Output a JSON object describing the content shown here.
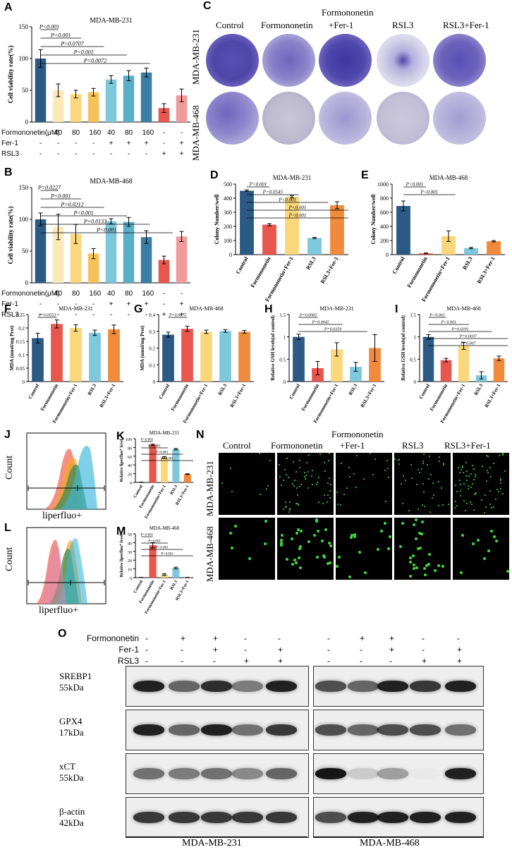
{
  "panel_labels": {
    "A": "A",
    "B": "B",
    "C": "C",
    "D": "D",
    "E": "E",
    "F": "F",
    "G": "G",
    "H": "H",
    "I": "I",
    "J": "J",
    "K": "K",
    "L": "L",
    "M": "M",
    "N": "N",
    "O": "O"
  },
  "treatments": [
    "Control",
    "Formononetin",
    "Formononetin +Fer-1",
    "RSL3",
    "RSL3+Fer-1"
  ],
  "panelC": {
    "col1": "Control",
    "col2": "Formononetin",
    "col3a": "Formononetin",
    "col3b": "+Fer-1",
    "col4": "RSL3",
    "col5": "RSL3+Fer-1",
    "row1": "MDA-MB-231",
    "row2": "MDA-MB-468"
  },
  "panelN": {
    "col1": "Control",
    "col2": "Formononetin",
    "col3a": "Formononetin",
    "col3b": "+Fer-1",
    "col4": "RSL3",
    "col5": "RSL3+Fer-1",
    "row1": "MDA-MB-231",
    "row2": "MDA-MB-468"
  },
  "treatment_table": {
    "row_labels": [
      "Formononetin(μM)",
      "Fer-1",
      "RSL3"
    ],
    "A": [
      [
        "-",
        "40",
        "80",
        "160",
        "40",
        "80",
        "160",
        "-",
        "-"
      ],
      [
        "-",
        "-",
        "-",
        "-",
        "+",
        "+",
        "+",
        "-",
        "+"
      ],
      [
        "-",
        "-",
        "-",
        "-",
        "-",
        "-",
        "-",
        "+",
        "+"
      ]
    ],
    "B": [
      [
        "-",
        "40",
        "80",
        "160",
        "40",
        "80",
        "160",
        "-",
        "-"
      ],
      [
        "-",
        "-",
        "-",
        "-",
        "+",
        "+",
        "+",
        "-",
        "+"
      ],
      [
        "-",
        "-",
        "-",
        "-",
        "-",
        "-",
        "-",
        "+",
        "+"
      ]
    ]
  },
  "flow": {
    "J_ylabel": "Count",
    "J_xlabel": "liperfluo+",
    "L_ylabel": "Count",
    "L_xlabel": "liperfluo+"
  },
  "western": {
    "row_labels": [
      "Formononetin",
      "Fer-1",
      "RSL3"
    ],
    "signs": [
      [
        "-",
        "+",
        "+",
        "-",
        "-"
      ],
      [
        "-",
        "-",
        "+",
        "-",
        "+"
      ],
      [
        "-",
        "-",
        "-",
        "+",
        "+"
      ]
    ],
    "proteins": [
      {
        "name": "SREBP1",
        "kda": "55kDa"
      },
      {
        "name": "GPX4",
        "kda": "17kDa"
      },
      {
        "name": "xCT",
        "kda": "55kDa"
      },
      {
        "name": "β-actin",
        "kda": "42kDa"
      }
    ],
    "left_cell": "MDA-MB-231",
    "right_cell": "MDA-MB-468"
  },
  "chart_data": [
    {
      "id": "A",
      "type": "bar",
      "title": "MDA-MB-231",
      "ylabel": "Cell viability rate(%)",
      "ylim": [
        0,
        150
      ],
      "yticks": [
        0,
        50,
        100,
        150
      ],
      "values": [
        100,
        50,
        44,
        47,
        67,
        73,
        78,
        22,
        42
      ],
      "errors": [
        14,
        10,
        6,
        6,
        6,
        8,
        7,
        7,
        10
      ],
      "colors": [
        "#2b5b84",
        "#fde9b8",
        "#fbd77c",
        "#f5c25a",
        "#7ec8dc",
        "#5aafc8",
        "#3b7ea5",
        "#e8574e",
        "#f09a9a"
      ],
      "annotations": [
        "P<0.001",
        "P<0.001",
        "P=0.0707",
        "P<0.001",
        "P=0.0072"
      ]
    },
    {
      "id": "B",
      "type": "bar",
      "title": "MDA-MB-468",
      "ylabel": "Cell viability rate(%)",
      "ylim": [
        0,
        150
      ],
      "yticks": [
        0,
        50,
        100,
        150
      ],
      "values": [
        100,
        88,
        77,
        46,
        97,
        96,
        72,
        36,
        73
      ],
      "errors": [
        10,
        20,
        15,
        8,
        4,
        7,
        10,
        6,
        8
      ],
      "colors": [
        "#2b5b84",
        "#fde9b8",
        "#fbd77c",
        "#f5c25a",
        "#7ec8dc",
        "#5aafc8",
        "#3b7ea5",
        "#e8574e",
        "#f09a9a"
      ],
      "annotations": [
        "P=0.0227",
        "P<0.001",
        "P=0.0212",
        "P<0.001",
        "P=0.0133",
        "P<0.001"
      ]
    },
    {
      "id": "D",
      "type": "bar",
      "title": "MDA-MB-231",
      "ylabel": "Colony  Number/well",
      "categories": [
        "Control",
        "Formononetin",
        "Formononetin+Fer-1",
        "RSL3",
        "RSL3+Fer-1"
      ],
      "ylim": [
        0,
        500
      ],
      "yticks": [
        0,
        100,
        200,
        300,
        400,
        500
      ],
      "values": [
        453,
        212,
        410,
        118,
        350
      ],
      "errors": [
        6,
        8,
        8,
        4,
        25
      ],
      "colors": [
        "#2b5b84",
        "#e8574e",
        "#fbd77c",
        "#7ec8dc",
        "#f08a3c"
      ],
      "annotations": [
        "P<0.001",
        "P=0.0545",
        "P<0.001",
        "P<0.001",
        "P<0.001"
      ]
    },
    {
      "id": "E",
      "type": "bar",
      "title": "MDA-MB-468",
      "ylabel": "Colony  Number/well",
      "categories": [
        "Control",
        "Formononetin",
        "Formononetin+Fer-1",
        "RSL3",
        "RSL3+Fer-1"
      ],
      "ylim": [
        0,
        1000
      ],
      "yticks": [
        0,
        200,
        400,
        600,
        800,
        1000
      ],
      "values": [
        690,
        18,
        262,
        92,
        190
      ],
      "errors": [
        70,
        5,
        75,
        10,
        10
      ],
      "colors": [
        "#2b5b84",
        "#e8574e",
        "#fbd77c",
        "#7ec8dc",
        "#f08a3c"
      ],
      "annotations": [
        "P<0.001",
        "P<0.001"
      ]
    },
    {
      "id": "F",
      "type": "bar",
      "title": "MDA-MB-231",
      "ylabel": "MDA (nmol/mg Prot)",
      "categories": [
        "Control",
        "Formononetin",
        "Formononetin+Fer-1",
        "RSL3",
        "RSL3+Fer-1"
      ],
      "ylim": [
        0,
        0.25
      ],
      "yticks": [
        0,
        0.05,
        0.1,
        0.15,
        0.2,
        0.25
      ],
      "values": [
        0.162,
        0.215,
        0.2,
        0.182,
        0.195
      ],
      "errors": [
        0.018,
        0.015,
        0.012,
        0.01,
        0.016
      ],
      "colors": [
        "#2b5b84",
        "#e8574e",
        "#fbd77c",
        "#7ec8dc",
        "#f08a3c"
      ],
      "annotations": [
        "P=0.0553"
      ]
    },
    {
      "id": "G",
      "type": "bar",
      "title": "MDA-MB-468",
      "ylabel": "MDA (nmol/mg Prot)",
      "categories": [
        "Control",
        "Formononetin",
        "Formononetin+Fer-1",
        "RSL3",
        "RSL3+Fer-1"
      ],
      "ylim": [
        0,
        0.4
      ],
      "yticks": [
        0,
        0.1,
        0.2,
        0.3,
        0.4
      ],
      "values": [
        0.28,
        0.315,
        0.297,
        0.302,
        0.297
      ],
      "errors": [
        0.015,
        0.015,
        0.01,
        0.008,
        0.008
      ],
      "colors": [
        "#2b5b84",
        "#e8574e",
        "#fbd77c",
        "#7ec8dc",
        "#f08a3c"
      ],
      "annotations": [
        "P=0.0175"
      ]
    },
    {
      "id": "H",
      "type": "bar",
      "title": "MDA-MB-231",
      "ylabel": "Relative GSH levels(of control)",
      "categories": [
        "Control",
        "Formononetin",
        "Formononetin+Fer-1",
        "RSL3",
        "RSL3+Fer-1"
      ],
      "ylim": [
        0,
        1.5
      ],
      "yticks": [
        0,
        0.5,
        1.0,
        1.5
      ],
      "values": [
        1.0,
        0.3,
        0.72,
        0.33,
        0.75
      ],
      "errors": [
        0.06,
        0.15,
        0.15,
        0.1,
        0.3
      ],
      "colors": [
        "#2b5b84",
        "#e8574e",
        "#fbd77c",
        "#7ec8dc",
        "#f08a3c"
      ],
      "annotations": [
        "P=0.0065",
        "P=0.0045",
        "P=0.0359"
      ]
    },
    {
      "id": "I",
      "type": "bar",
      "title": "MDA-MB-468",
      "ylabel": "Relative GSH levels(of control)",
      "categories": [
        "Control",
        "Formononetin",
        "Formononetin+Fer-1",
        "RSL3",
        "RSL3+Fer-1"
      ],
      "ylim": [
        0,
        1.5
      ],
      "yticks": [
        0,
        0.5,
        1.0,
        1.5
      ],
      "values": [
        1.0,
        0.48,
        0.8,
        0.14,
        0.52
      ],
      "errors": [
        0.05,
        0.04,
        0.08,
        0.08,
        0.05
      ],
      "colors": [
        "#2b5b84",
        "#e8574e",
        "#fbd77c",
        "#7ec8dc",
        "#f08a3c"
      ],
      "annotations": [
        "P<0.001",
        "P<0.001",
        "P=0.0391",
        "P=0.0037",
        "P=0.007"
      ]
    },
    {
      "id": "K",
      "type": "bar",
      "title": "MDA-MB-231",
      "ylabel": "Relative liperfluo⁺ level",
      "categories": [
        "Control",
        "Formononetin",
        "Formononetin+Fer-1",
        "RSL3",
        "RSL3+Fer-1"
      ],
      "ylim": [
        0,
        100
      ],
      "yticks": [
        0,
        20,
        40,
        60,
        80,
        100
      ],
      "values": [
        0.5,
        86,
        57,
        76,
        19
      ],
      "errors": [
        0.3,
        1.5,
        2,
        1.5,
        0.8
      ],
      "colors": [
        "#2b5b84",
        "#e8574e",
        "#fbd77c",
        "#7ec8dc",
        "#f08a3c"
      ],
      "annotations": [
        "P<0.001",
        "P<0.001",
        "P<0.001",
        "P<0.001"
      ]
    },
    {
      "id": "M",
      "type": "bar",
      "title": "MDA-MB-468",
      "ylabel": "Relative liperfluo⁺ level",
      "categories": [
        "Control",
        "Formononetin",
        "Formononetin+Fer-1",
        "RSL3",
        "RSL3+Fer-1"
      ],
      "ylim": [
        0,
        50
      ],
      "yticks": [
        0,
        10,
        20,
        30,
        40,
        50
      ],
      "values": [
        0.2,
        37,
        3.5,
        11,
        0.3
      ],
      "errors": [
        0.1,
        3,
        1,
        1,
        0.1
      ],
      "colors": [
        "#2b5b84",
        "#e8574e",
        "#fbd77c",
        "#7ec8dc",
        "#f08a3c"
      ],
      "annotations": [
        "P<0.001",
        "P<0.001",
        "P<0.001",
        "P<0.001"
      ]
    }
  ]
}
